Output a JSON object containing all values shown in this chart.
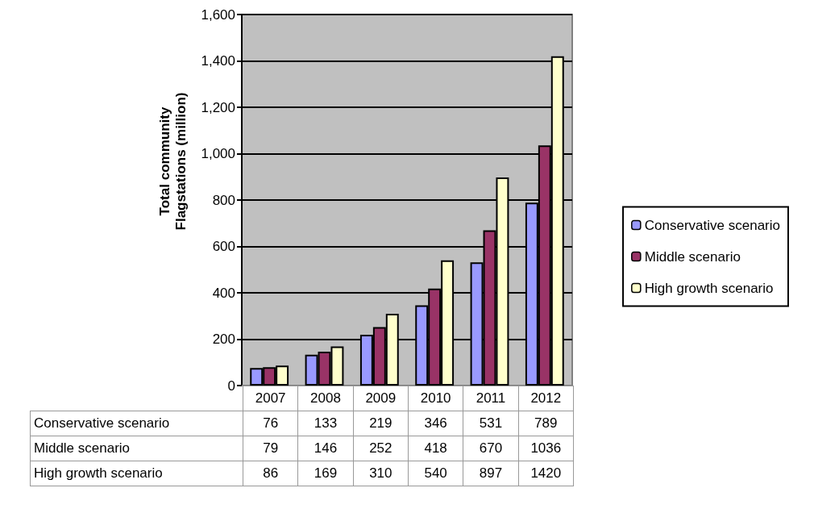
{
  "chart_data": {
    "type": "bar",
    "ylabel": "Total community\nFlagstations (million)",
    "categories": [
      "2007",
      "2008",
      "2009",
      "2010",
      "2011",
      "2012"
    ],
    "series": [
      {
        "name": "Conservative scenario",
        "color": "#9999ff",
        "values": [
          76,
          133,
          219,
          346,
          531,
          789
        ]
      },
      {
        "name": "Middle scenario",
        "color": "#993366",
        "values": [
          79,
          146,
          252,
          418,
          670,
          1036
        ]
      },
      {
        "name": "High growth scenario",
        "color": "#ffffcc",
        "values": [
          86,
          169,
          310,
          540,
          897,
          1420
        ]
      }
    ],
    "ylim": [
      0,
      1600
    ],
    "yticks": [
      0,
      200,
      400,
      600,
      800,
      {
        "value": 1000,
        "label": "1,000"
      },
      {
        "value": 1200,
        "label": "1,200"
      },
      {
        "value": 1400,
        "label": "1,400"
      },
      {
        "value": 1600,
        "label": "1,600"
      }
    ],
    "grid": "y",
    "legend": "right",
    "data_labels": true
  }
}
